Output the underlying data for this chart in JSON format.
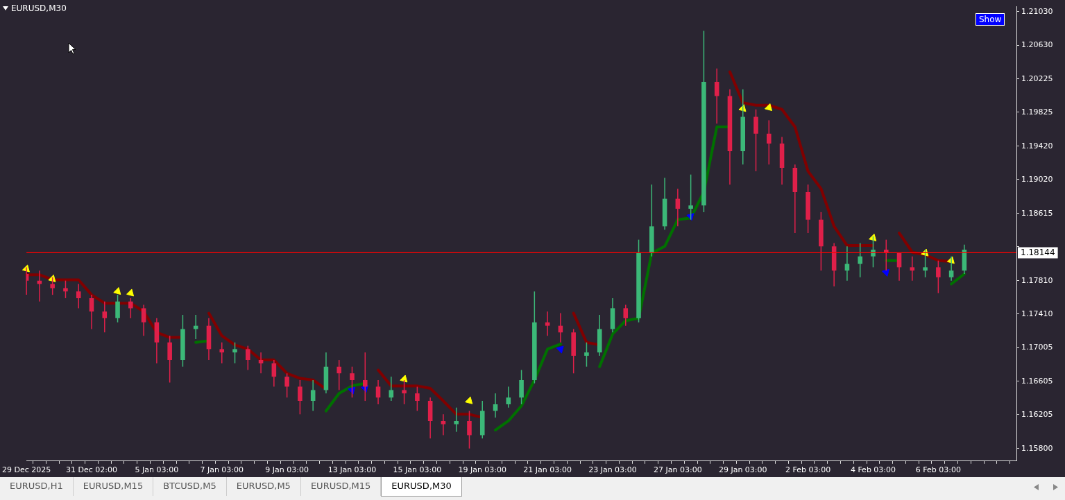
{
  "chart_data": {
    "type": "candlestick",
    "title": "EURUSD,M30",
    "categories": [
      "29 Dec 2025",
      null,
      null,
      null,
      null,
      "31 Dec 02:00",
      null,
      null,
      null,
      null,
      "5 Jan 03:00",
      null,
      null,
      null,
      null,
      "7 Jan 03:00",
      null,
      null,
      null,
      null,
      "9 Jan 03:00",
      null,
      null,
      null,
      null,
      "13 Jan 03:00",
      null,
      null,
      null,
      null,
      "15 Jan 03:00",
      null,
      null,
      null,
      null,
      "19 Jan 03:00",
      null,
      null,
      null,
      null,
      "21 Jan 03:00",
      null,
      null,
      null,
      null,
      "23 Jan 03:00",
      null,
      null,
      null,
      null,
      "27 Jan 03:00",
      null,
      null,
      null,
      null,
      "29 Jan 03:00",
      null,
      null,
      null,
      null,
      "2 Feb 03:00",
      null,
      null,
      null,
      null,
      "4 Feb 03:00",
      null,
      null,
      null,
      null,
      "6 Feb 03:00",
      null,
      null,
      null,
      null,
      null,
      null
    ],
    "ohlc": [
      [
        1.1789,
        1.1797,
        1.1764,
        1.1781
      ],
      [
        1.1781,
        1.1793,
        1.1756,
        1.1777
      ],
      [
        1.1777,
        1.1785,
        1.1764,
        1.1772
      ],
      [
        1.1772,
        1.1781,
        1.176,
        1.1768
      ],
      [
        1.1768,
        1.1777,
        1.1748,
        1.176
      ],
      [
        1.176,
        1.1764,
        1.1723,
        1.1744
      ],
      [
        1.1744,
        1.1756,
        1.1719,
        1.1736
      ],
      [
        1.1736,
        1.1764,
        1.1731,
        1.1756
      ],
      [
        1.1756,
        1.176,
        1.1736,
        1.1748
      ],
      [
        1.1748,
        1.1752,
        1.1715,
        1.1731
      ],
      [
        1.1731,
        1.1736,
        1.1682,
        1.1707
      ],
      [
        1.1707,
        1.1715,
        1.1659,
        1.1686
      ],
      [
        1.1686,
        1.174,
        1.1678,
        1.1723
      ],
      [
        1.1723,
        1.174,
        1.1711,
        1.1727
      ],
      [
        1.1727,
        1.1736,
        1.1686,
        1.1699
      ],
      [
        1.1699,
        1.1707,
        1.1682,
        1.1695
      ],
      [
        1.1695,
        1.1707,
        1.1682,
        1.1699
      ],
      [
        1.1699,
        1.1703,
        1.1674,
        1.1686
      ],
      [
        1.1686,
        1.1695,
        1.167,
        1.1682
      ],
      [
        1.1682,
        1.1686,
        1.1654,
        1.1666
      ],
      [
        1.1666,
        1.167,
        1.1641,
        1.1654
      ],
      [
        1.1654,
        1.1662,
        1.1621,
        1.1637
      ],
      [
        1.1637,
        1.1662,
        1.1625,
        1.165
      ],
      [
        1.165,
        1.1695,
        1.1646,
        1.1678
      ],
      [
        1.1678,
        1.1686,
        1.165,
        1.167
      ],
      [
        1.167,
        1.1678,
        1.1641,
        1.1662
      ],
      [
        1.1662,
        1.1695,
        1.1637,
        1.1654
      ],
      [
        1.1654,
        1.1662,
        1.1633,
        1.1641
      ],
      [
        1.1641,
        1.1666,
        1.1637,
        1.165
      ],
      [
        1.165,
        1.1662,
        1.1633,
        1.1646
      ],
      [
        1.1646,
        1.1654,
        1.1625,
        1.1637
      ],
      [
        1.1637,
        1.1641,
        1.1592,
        1.1613
      ],
      [
        1.1613,
        1.1621,
        1.1596,
        1.1609
      ],
      [
        1.1609,
        1.1629,
        1.16,
        1.1613
      ],
      [
        1.1613,
        1.1625,
        1.158,
        1.1596
      ],
      [
        1.1596,
        1.1637,
        1.1592,
        1.1625
      ],
      [
        1.1625,
        1.1646,
        1.1617,
        1.1633
      ],
      [
        1.1633,
        1.1654,
        1.1629,
        1.1641
      ],
      [
        1.1641,
        1.1674,
        1.1633,
        1.1662
      ],
      [
        1.1662,
        1.1768,
        1.1658,
        1.1731
      ],
      [
        1.1731,
        1.1744,
        1.1715,
        1.1727
      ],
      [
        1.1727,
        1.1742,
        1.1707,
        1.1719
      ],
      [
        1.1719,
        1.1723,
        1.167,
        1.1691
      ],
      [
        1.1691,
        1.1707,
        1.1678,
        1.1695
      ],
      [
        1.1695,
        1.174,
        1.1691,
        1.1723
      ],
      [
        1.1723,
        1.176,
        1.1719,
        1.1748
      ],
      [
        1.1748,
        1.1752,
        1.1727,
        1.1736
      ],
      [
        1.1736,
        1.183,
        1.1731,
        1.1814
      ],
      [
        1.1814,
        1.1896,
        1.181,
        1.1846
      ],
      [
        1.1846,
        1.1904,
        1.1842,
        1.1879
      ],
      [
        1.1879,
        1.1891,
        1.1846,
        1.1867
      ],
      [
        1.1867,
        1.1908,
        1.1854,
        1.1871
      ],
      [
        1.1871,
        1.208,
        1.1863,
        1.2019
      ],
      [
        1.2019,
        1.2035,
        1.1969,
        1.2002
      ],
      [
        1.2002,
        1.201,
        1.1896,
        1.1936
      ],
      [
        1.1936,
        1.201,
        1.192,
        1.1977
      ],
      [
        1.1977,
        1.1986,
        1.1912,
        1.1957
      ],
      [
        1.1957,
        1.1973,
        1.192,
        1.1945
      ],
      [
        1.1945,
        1.1953,
        1.1896,
        1.1916
      ],
      [
        1.1916,
        1.192,
        1.1838,
        1.1887
      ],
      [
        1.1887,
        1.1896,
        1.1838,
        1.1854
      ],
      [
        1.1854,
        1.1863,
        1.1793,
        1.1822
      ],
      [
        1.1822,
        1.1826,
        1.1774,
        1.1793
      ],
      [
        1.1793,
        1.1822,
        1.1781,
        1.1801
      ],
      [
        1.1801,
        1.1826,
        1.1785,
        1.181
      ],
      [
        1.181,
        1.1834,
        1.1797,
        1.1818
      ],
      [
        1.1818,
        1.183,
        1.1793,
        1.1814
      ],
      [
        1.1814,
        1.1814,
        1.1781,
        1.1797
      ],
      [
        1.1797,
        1.181,
        1.1781,
        1.1793
      ],
      [
        1.1793,
        1.1818,
        1.1785,
        1.1797
      ],
      [
        1.1797,
        1.1805,
        1.1766,
        1.1785
      ],
      [
        1.1785,
        1.181,
        1.1781,
        1.1793
      ],
      [
        1.1793,
        1.1824,
        1.1789,
        1.1818
      ],
      null,
      null,
      null,
      null
    ],
    "colors": [
      "#e0204a",
      "#e0204a",
      "#e0204a",
      "#e0204a",
      "#e0204a",
      "#e0204a",
      "#e0204a",
      "#3cb878",
      "#e0204a",
      "#e0204a",
      "#e0204a",
      "#e0204a",
      "#3cb878",
      "#3cb878",
      "#e0204a",
      "#e0204a",
      "#3cb878",
      "#e0204a",
      "#e0204a",
      "#e0204a",
      "#e0204a",
      "#e0204a",
      "#3cb878",
      "#3cb878",
      "#e0204a",
      "#e0204a",
      "#e0204a",
      "#e0204a",
      "#3cb878",
      "#e0204a",
      "#e0204a",
      "#e0204a",
      "#e0204a",
      "#3cb878",
      "#e0204a",
      "#3cb878",
      "#3cb878",
      "#3cb878",
      "#3cb878",
      "#3cb878",
      "#e0204a",
      "#e0204a",
      "#e0204a",
      "#3cb878",
      "#3cb878",
      "#3cb878",
      "#e0204a",
      "#3cb878",
      "#3cb878",
      "#3cb878",
      "#e0204a",
      "#3cb878",
      "#3cb878",
      "#e0204a",
      "#e0204a",
      "#3cb878",
      "#e0204a",
      "#e0204a",
      "#e0204a",
      "#e0204a",
      "#e0204a",
      "#e0204a",
      "#e0204a",
      "#3cb878",
      "#3cb878",
      "#3cb878",
      "#e0204a",
      "#e0204a",
      "#e0204a",
      "#3cb878",
      "#e0204a",
      "#3cb878",
      "#3cb878",
      null,
      null,
      null,
      null
    ],
    "series": [
      {
        "type": "line",
        "color": "#800000",
        "values": [
          1.1788,
          1.1788,
          1.1782,
          1.1782,
          1.1782,
          1.1764,
          1.1754,
          1.1754,
          1.1754,
          1.1744,
          1.1719,
          1.1713,
          1.1713,
          null,
          1.1742,
          1.1715,
          1.1704,
          1.1699,
          1.1686,
          1.1686,
          1.167,
          1.1664,
          1.1662,
          1.1651,
          null,
          null,
          null,
          1.1674,
          1.1655,
          1.1655,
          1.1655,
          1.1652,
          1.1637,
          1.1621,
          1.1621,
          1.1617,
          null,
          null,
          null,
          null,
          null,
          null,
          1.1742,
          1.1707,
          1.1704,
          null,
          null,
          null,
          null,
          null,
          null,
          null,
          null,
          null,
          1.2031,
          1.1994,
          1.1991,
          1.1991,
          1.1986,
          1.1965,
          1.1912,
          1.1891,
          1.1846,
          1.1823,
          1.1823,
          1.1823,
          null,
          1.1838,
          1.1815,
          1.1812,
          1.1805,
          1.1804,
          null,
          null,
          null,
          null,
          null
        ]
      },
      {
        "type": "line",
        "color": "#007000",
        "values": [
          null,
          null,
          null,
          null,
          null,
          null,
          null,
          null,
          null,
          null,
          null,
          null,
          null,
          1.1707,
          1.1709,
          null,
          null,
          null,
          null,
          null,
          null,
          null,
          null,
          1.1625,
          1.1646,
          1.1655,
          1.1658,
          null,
          null,
          null,
          null,
          null,
          null,
          null,
          null,
          null,
          1.1602,
          1.1613,
          1.1631,
          1.1662,
          1.1699,
          1.1705,
          null,
          null,
          1.1678,
          1.1717,
          1.1733,
          1.1736,
          1.1814,
          1.1822,
          1.1854,
          1.1856,
          1.1887,
          1.1965,
          1.1965,
          null,
          null,
          null,
          null,
          null,
          null,
          null,
          null,
          null,
          null,
          null,
          1.1805,
          1.1805,
          null,
          null,
          null,
          1.1777,
          1.1789,
          null,
          null,
          null,
          null
        ]
      },
      {
        "type": "scatter",
        "marker": "triangle",
        "color": "#ffff00",
        "values": [
          1.1795,
          null,
          1.1783,
          null,
          null,
          null,
          null,
          1.1768,
          1.1766,
          null,
          null,
          null,
          null,
          null,
          null,
          null,
          null,
          null,
          null,
          null,
          null,
          null,
          null,
          null,
          null,
          null,
          null,
          null,
          null,
          1.1663,
          null,
          null,
          null,
          null,
          1.1637,
          null,
          null,
          null,
          null,
          null,
          null,
          null,
          null,
          null,
          null,
          null,
          null,
          null,
          null,
          null,
          null,
          null,
          null,
          null,
          null,
          1.1987,
          null,
          1.1988,
          null,
          null,
          null,
          null,
          null,
          null,
          null,
          1.1832,
          null,
          null,
          null,
          1.1814,
          null,
          1.1805,
          null,
          null,
          null,
          null,
          null
        ]
      },
      {
        "type": "scatter",
        "marker": "triangle",
        "color": "#0000ff",
        "values": [
          null,
          null,
          null,
          null,
          null,
          null,
          null,
          null,
          null,
          null,
          null,
          null,
          null,
          null,
          null,
          null,
          null,
          null,
          null,
          null,
          null,
          null,
          null,
          null,
          null,
          1.165,
          1.1652,
          null,
          null,
          null,
          null,
          null,
          null,
          null,
          null,
          null,
          null,
          null,
          null,
          null,
          null,
          1.1699,
          null,
          null,
          null,
          null,
          null,
          null,
          null,
          null,
          null,
          1.1858,
          null,
          null,
          null,
          null,
          null,
          null,
          null,
          null,
          null,
          null,
          null,
          null,
          null,
          null,
          1.1791,
          null,
          null,
          null,
          null,
          null,
          null,
          null,
          null,
          null,
          null
        ]
      }
    ],
    "ylim": [
      1.1565,
      1.2109
    ],
    "yticks": [
      {
        "value": 1.158,
        "label": "1.15800"
      },
      {
        "value": 1.16205,
        "label": "1.16205"
      },
      {
        "value": 1.16605,
        "label": "1.16605"
      },
      {
        "value": 1.17005,
        "label": "1.17005"
      },
      {
        "value": 1.1741,
        "label": "1.17410"
      },
      {
        "value": 1.1781,
        "label": "1.17810"
      },
      {
        "value": 1.18215,
        "label": null
      },
      {
        "value": 1.18615,
        "label": "1.18615"
      },
      {
        "value": 1.1902,
        "label": "1.19020"
      },
      {
        "value": 1.1942,
        "label": "1.19420"
      },
      {
        "value": 1.19825,
        "label": "1.19825"
      },
      {
        "value": 1.20225,
        "label": "1.20225"
      },
      {
        "value": 1.2063,
        "label": "1.20630"
      },
      {
        "value": 1.2103,
        "label": "1.21030"
      }
    ],
    "ref_lines": [
      {
        "axis": "y",
        "value": 1.18144,
        "label": "1.18144",
        "color": "#ff0000"
      }
    ],
    "annotations": [
      "Show",
      "EURUSD,H1",
      "EURUSD,M15",
      "BTCUSD,M5",
      "EURUSD,M5",
      "EURUSD,M15",
      "EURUSD,M30"
    ],
    "grid": false,
    "legend": false
  }
}
